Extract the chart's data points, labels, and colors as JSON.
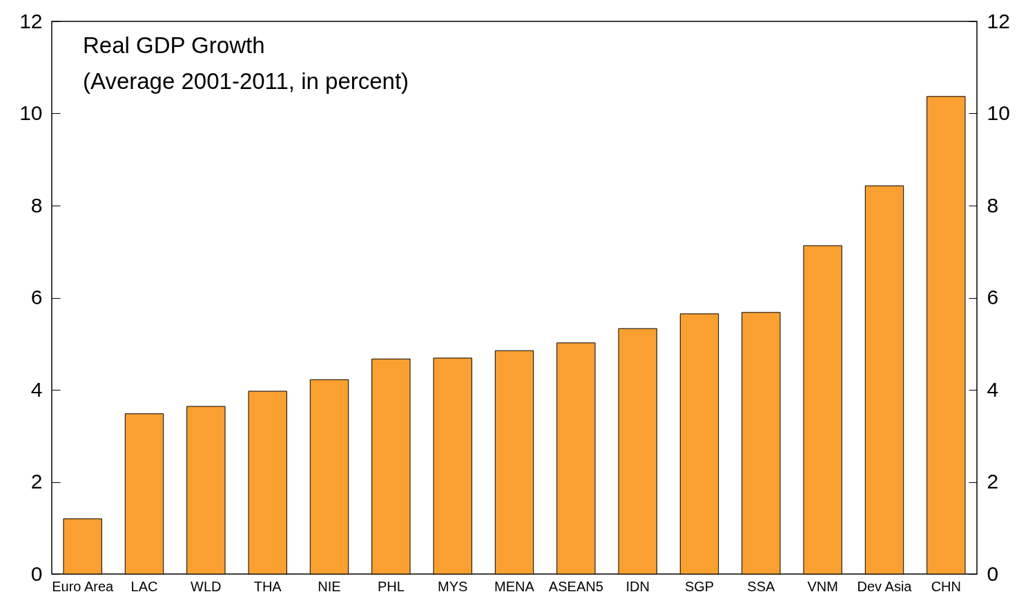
{
  "chart_data": {
    "type": "bar",
    "title": "Real GDP Growth",
    "subtitle": "(Average 2001-2011, in percent)",
    "categories": [
      "Euro Area",
      "LAC",
      "WLD",
      "THA",
      "NIE",
      "PHL",
      "MYS",
      "MENA",
      "ASEAN5",
      "IDN",
      "SGP",
      "SSA",
      "VNM",
      "Dev Asia",
      "CHN"
    ],
    "values": [
      1.2,
      3.48,
      3.64,
      3.97,
      4.22,
      4.67,
      4.69,
      4.85,
      5.02,
      5.33,
      5.65,
      5.68,
      7.13,
      8.43,
      10.37
    ],
    "color": "#f9a030",
    "ylim": [
      0,
      12
    ],
    "yticks": [
      0,
      2,
      4,
      6,
      8,
      10,
      12
    ],
    "y2lim": [
      0,
      12
    ],
    "y2ticks": [
      0,
      2,
      4,
      6,
      8,
      10,
      12
    ],
    "grid": false
  }
}
